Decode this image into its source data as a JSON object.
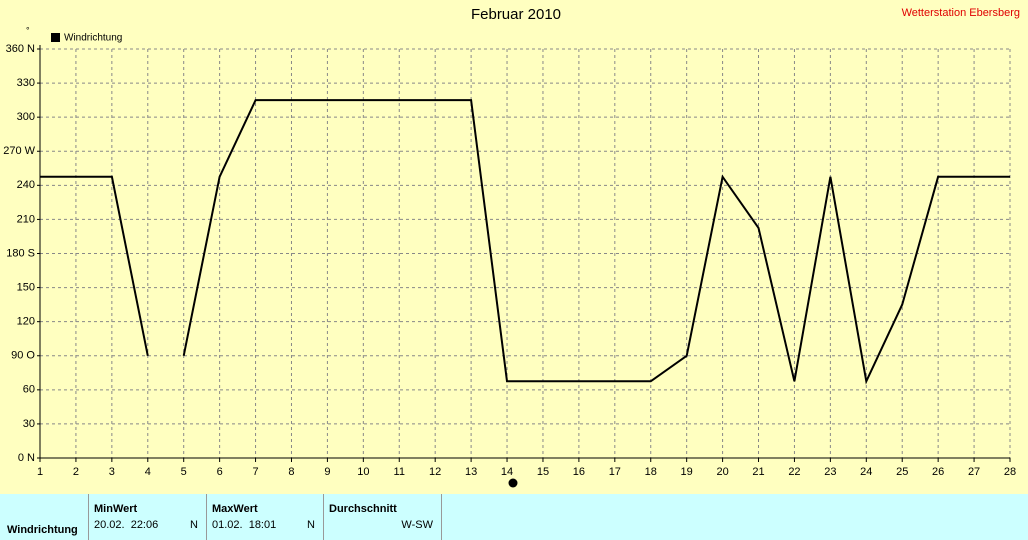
{
  "chart_data": {
    "type": "line",
    "title": "Februar 2010",
    "subtitle": "Wetterstation Ebersberg",
    "y_label": "°",
    "x": [
      1,
      2,
      3,
      4,
      4.5,
      5,
      6,
      7,
      8,
      9,
      10,
      11,
      12,
      13,
      14,
      15,
      16,
      17,
      18,
      19,
      20,
      21,
      22,
      23,
      24,
      25,
      26,
      27,
      28
    ],
    "series": [
      {
        "name": "Windrichtung",
        "color": "#000000",
        "values": [
          247.5,
          247.5,
          247.5,
          90,
          null,
          90,
          247.5,
          315,
          315,
          315,
          315,
          315,
          315,
          315,
          67.5,
          67.5,
          67.5,
          67.5,
          67.5,
          90,
          247.5,
          202.5,
          67.5,
          247.5,
          67.5,
          135,
          247.5,
          247.5,
          247.5
        ]
      }
    ],
    "xlim": [
      1,
      28
    ],
    "xticks": [
      1,
      2,
      3,
      4,
      5,
      6,
      7,
      8,
      9,
      10,
      11,
      12,
      13,
      14,
      15,
      16,
      17,
      18,
      19,
      20,
      21,
      22,
      23,
      24,
      25,
      26,
      27,
      28
    ],
    "ylim": [
      0,
      360
    ],
    "yticks": [
      {
        "value": 0,
        "label": "0 N"
      },
      30,
      60,
      {
        "value": 90,
        "label": "90 O"
      },
      120,
      150,
      {
        "value": 180,
        "label": "180 S"
      },
      210,
      240,
      {
        "value": 270,
        "label": "270 W"
      },
      300,
      330,
      {
        "value": 360,
        "label": "360 N"
      }
    ],
    "grid": true,
    "legend": "top-left"
  },
  "table": {
    "row_label": "Windrichtung",
    "columns": [
      {
        "header": "MinWert",
        "date": "20.02.  22:06",
        "dir": "N"
      },
      {
        "header": "MaxWert",
        "date": "01.02.  18:01",
        "dir": "N"
      },
      {
        "header": "Durchschnitt",
        "dir": "W-SW"
      }
    ]
  }
}
